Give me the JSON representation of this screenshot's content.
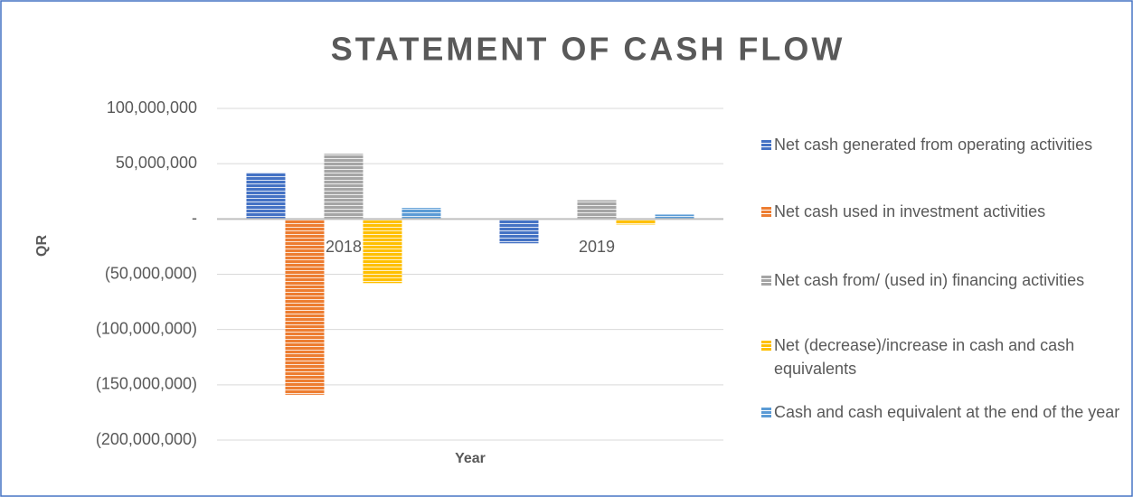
{
  "chart_data": {
    "type": "bar",
    "title": "STATEMENT OF CASH FLOW",
    "x_label": "Year",
    "y_label": "QR",
    "categories": [
      "2018",
      "2019"
    ],
    "series": [
      {
        "name": "Net cash generated from operating activities",
        "color": "#4472c4",
        "values": [
          42000000,
          -22000000
        ]
      },
      {
        "name": "Net cash used in investment activities",
        "color": "#ed7d31",
        "values": [
          -159000000,
          0
        ]
      },
      {
        "name": "Net cash from/ (used in) financing activities",
        "color": "#a5a5a5",
        "values": [
          59000000,
          17000000
        ]
      },
      {
        "name": "Net (decrease)/increase in cash and cash equivalents",
        "color": "#ffc000",
        "values": [
          -58000000,
          -5000000
        ]
      },
      {
        "name": "Cash and cash equivalent at the end of the year",
        "color": "#5b9bd5",
        "values": [
          10000000,
          4000000
        ]
      }
    ],
    "ylim": [
      -200000000,
      100000000
    ],
    "yticks": [
      {
        "value": 100000000,
        "label": "100,000,000"
      },
      {
        "value": 50000000,
        "label": "50,000,000"
      },
      {
        "value": 0,
        "label": "-"
      },
      {
        "value": -50000000,
        "label": "(50,000,000)"
      },
      {
        "value": -100000000,
        "label": "(100,000,000)"
      },
      {
        "value": -150000000,
        "label": "(150,000,000)"
      },
      {
        "value": -200000000,
        "label": "(200,000,000)"
      }
    ],
    "grid": true,
    "legend": "right"
  }
}
